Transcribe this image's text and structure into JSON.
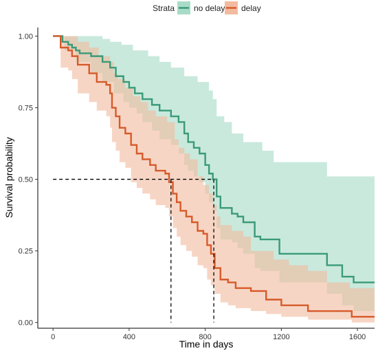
{
  "chart_data": {
    "type": "line",
    "subtype": "kaplan-meier survival curve with confidence bands",
    "xlabel": "Time in days",
    "ylabel": "Survival probability",
    "xlim": [
      -80,
      1690
    ],
    "ylim": [
      -0.02,
      1.03
    ],
    "x_ticks": [
      0,
      400,
      800,
      1200,
      1600
    ],
    "x_tick_labels": [
      "0",
      "400",
      "800",
      "1200",
      "1600"
    ],
    "y_ticks": [
      0,
      0.25,
      0.5,
      0.75,
      1.0
    ],
    "y_tick_labels": [
      "0.00",
      "0.25",
      "0.50",
      "0.75",
      "1.00"
    ],
    "grid": false,
    "legend": {
      "title": "Strata",
      "position": "top",
      "entries": [
        "no delay",
        "delay"
      ]
    },
    "median_lines": [
      {
        "series": "delay",
        "x": 620,
        "y": 0.5
      },
      {
        "series": "no delay",
        "x": 845,
        "y": 0.5
      }
    ],
    "series": [
      {
        "name": "no delay",
        "color": "#3a9a78",
        "band_color": "#a8dcc8",
        "steps": [
          [
            0,
            1.0
          ],
          [
            50,
            0.98
          ],
          [
            80,
            0.97
          ],
          [
            100,
            0.96
          ],
          [
            120,
            0.95
          ],
          [
            140,
            0.94
          ],
          [
            200,
            0.93
          ],
          [
            260,
            0.91
          ],
          [
            300,
            0.89
          ],
          [
            330,
            0.86
          ],
          [
            370,
            0.84
          ],
          [
            400,
            0.82
          ],
          [
            430,
            0.8
          ],
          [
            470,
            0.78
          ],
          [
            520,
            0.76
          ],
          [
            560,
            0.74
          ],
          [
            620,
            0.72
          ],
          [
            660,
            0.7
          ],
          [
            690,
            0.66
          ],
          [
            710,
            0.63
          ],
          [
            740,
            0.61
          ],
          [
            770,
            0.59
          ],
          [
            800,
            0.55
          ],
          [
            820,
            0.52
          ],
          [
            840,
            0.5
          ],
          [
            860,
            0.44
          ],
          [
            880,
            0.4
          ],
          [
            940,
            0.38
          ],
          [
            970,
            0.37
          ],
          [
            1000,
            0.35
          ],
          [
            1060,
            0.3
          ],
          [
            1090,
            0.29
          ],
          [
            1190,
            0.24
          ],
          [
            1440,
            0.2
          ],
          [
            1520,
            0.16
          ],
          [
            1580,
            0.14
          ],
          [
            1690,
            0.14
          ]
        ],
        "upper": [
          [
            0,
            1.0
          ],
          [
            140,
            1.0
          ],
          [
            260,
            0.99
          ],
          [
            300,
            0.98
          ],
          [
            360,
            0.97
          ],
          [
            420,
            0.95
          ],
          [
            500,
            0.93
          ],
          [
            560,
            0.91
          ],
          [
            620,
            0.89
          ],
          [
            690,
            0.86
          ],
          [
            760,
            0.84
          ],
          [
            820,
            0.81
          ],
          [
            840,
            0.78
          ],
          [
            860,
            0.72
          ],
          [
            900,
            0.7
          ],
          [
            940,
            0.66
          ],
          [
            1000,
            0.63
          ],
          [
            1100,
            0.6
          ],
          [
            1160,
            0.56
          ],
          [
            1230,
            0.56
          ],
          [
            1440,
            0.51
          ],
          [
            1690,
            0.51
          ]
        ],
        "lower": [
          [
            0,
            1.0
          ],
          [
            60,
            0.95
          ],
          [
            120,
            0.91
          ],
          [
            200,
            0.87
          ],
          [
            260,
            0.84
          ],
          [
            320,
            0.8
          ],
          [
            370,
            0.77
          ],
          [
            400,
            0.75
          ],
          [
            440,
            0.73
          ],
          [
            470,
            0.7
          ],
          [
            520,
            0.67
          ],
          [
            560,
            0.64
          ],
          [
            620,
            0.62
          ],
          [
            660,
            0.59
          ],
          [
            690,
            0.55
          ],
          [
            710,
            0.53
          ],
          [
            740,
            0.51
          ],
          [
            770,
            0.49
          ],
          [
            800,
            0.45
          ],
          [
            820,
            0.42
          ],
          [
            840,
            0.39
          ],
          [
            860,
            0.33
          ],
          [
            880,
            0.29
          ],
          [
            940,
            0.28
          ],
          [
            970,
            0.26
          ],
          [
            1000,
            0.24
          ],
          [
            1060,
            0.19
          ],
          [
            1090,
            0.18
          ],
          [
            1190,
            0.14
          ],
          [
            1440,
            0.1
          ],
          [
            1520,
            0.06
          ],
          [
            1580,
            0.04
          ],
          [
            1690,
            0.04
          ]
        ]
      },
      {
        "name": "delay",
        "color": "#d65a2a",
        "band_color": "#f2bb9f",
        "steps": [
          [
            0,
            1.0
          ],
          [
            40,
            0.96
          ],
          [
            80,
            0.95
          ],
          [
            100,
            0.93
          ],
          [
            130,
            0.9
          ],
          [
            190,
            0.87
          ],
          [
            230,
            0.84
          ],
          [
            280,
            0.83
          ],
          [
            300,
            0.8
          ],
          [
            310,
            0.75
          ],
          [
            330,
            0.72
          ],
          [
            350,
            0.68
          ],
          [
            380,
            0.66
          ],
          [
            410,
            0.62
          ],
          [
            440,
            0.59
          ],
          [
            470,
            0.57
          ],
          [
            510,
            0.55
          ],
          [
            540,
            0.53
          ],
          [
            590,
            0.52
          ],
          [
            610,
            0.49
          ],
          [
            630,
            0.45
          ],
          [
            650,
            0.42
          ],
          [
            670,
            0.39
          ],
          [
            700,
            0.37
          ],
          [
            730,
            0.35
          ],
          [
            760,
            0.32
          ],
          [
            790,
            0.31
          ],
          [
            810,
            0.27
          ],
          [
            830,
            0.24
          ],
          [
            850,
            0.19
          ],
          [
            880,
            0.15
          ],
          [
            920,
            0.14
          ],
          [
            960,
            0.12
          ],
          [
            1040,
            0.11
          ],
          [
            1120,
            0.08
          ],
          [
            1200,
            0.06
          ],
          [
            1340,
            0.04
          ],
          [
            1570,
            0.02
          ],
          [
            1690,
            0.02
          ]
        ],
        "upper": [
          [
            0,
            1.0
          ],
          [
            60,
            1.0
          ],
          [
            130,
            0.98
          ],
          [
            190,
            0.96
          ],
          [
            240,
            0.93
          ],
          [
            300,
            0.91
          ],
          [
            320,
            0.87
          ],
          [
            340,
            0.85
          ],
          [
            380,
            0.82
          ],
          [
            420,
            0.79
          ],
          [
            460,
            0.77
          ],
          [
            500,
            0.74
          ],
          [
            540,
            0.72
          ],
          [
            600,
            0.7
          ],
          [
            640,
            0.64
          ],
          [
            660,
            0.61
          ],
          [
            690,
            0.59
          ],
          [
            720,
            0.57
          ],
          [
            760,
            0.51
          ],
          [
            790,
            0.48
          ],
          [
            820,
            0.45
          ],
          [
            840,
            0.41
          ],
          [
            860,
            0.37
          ],
          [
            880,
            0.34
          ],
          [
            940,
            0.32
          ],
          [
            1000,
            0.3
          ],
          [
            1040,
            0.25
          ],
          [
            1160,
            0.22
          ],
          [
            1240,
            0.2
          ],
          [
            1340,
            0.18
          ],
          [
            1440,
            0.14
          ],
          [
            1560,
            0.12
          ],
          [
            1690,
            0.12
          ]
        ],
        "lower": [
          [
            0,
            1.0
          ],
          [
            40,
            0.89
          ],
          [
            80,
            0.88
          ],
          [
            100,
            0.85
          ],
          [
            130,
            0.8
          ],
          [
            190,
            0.77
          ],
          [
            230,
            0.74
          ],
          [
            280,
            0.72
          ],
          [
            300,
            0.68
          ],
          [
            310,
            0.63
          ],
          [
            330,
            0.6
          ],
          [
            350,
            0.56
          ],
          [
            380,
            0.54
          ],
          [
            410,
            0.49
          ],
          [
            440,
            0.47
          ],
          [
            470,
            0.45
          ],
          [
            510,
            0.43
          ],
          [
            540,
            0.41
          ],
          [
            590,
            0.4
          ],
          [
            610,
            0.37
          ],
          [
            630,
            0.33
          ],
          [
            650,
            0.3
          ],
          [
            670,
            0.27
          ],
          [
            700,
            0.25
          ],
          [
            730,
            0.23
          ],
          [
            760,
            0.2
          ],
          [
            790,
            0.19
          ],
          [
            810,
            0.15
          ],
          [
            830,
            0.13
          ],
          [
            850,
            0.1
          ],
          [
            880,
            0.07
          ],
          [
            920,
            0.06
          ],
          [
            960,
            0.05
          ],
          [
            1040,
            0.04
          ],
          [
            1120,
            0.03
          ],
          [
            1200,
            0.02
          ],
          [
            1340,
            0.01
          ],
          [
            1570,
            0.0
          ],
          [
            1690,
            0.0
          ]
        ]
      }
    ]
  }
}
